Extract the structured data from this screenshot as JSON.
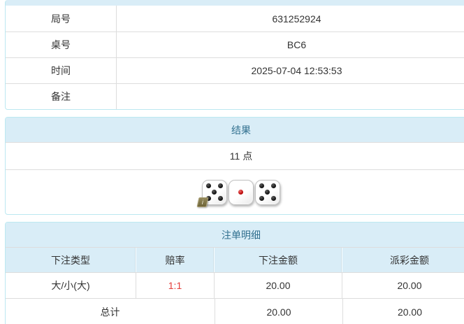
{
  "colors": {
    "header_bg": "#d9edf7",
    "header_text": "#31708f",
    "panel_border": "#bce8f1",
    "row_border": "#dddddd",
    "text": "#333333",
    "odds_red": "#e43d3a"
  },
  "info_table": {
    "rows": [
      {
        "label": "局号",
        "value": "631252924"
      },
      {
        "label": "桌号",
        "value": "BC6"
      },
      {
        "label": "时间",
        "value": "2025-07-04 12:53:53"
      },
      {
        "label": "备注",
        "value": ""
      }
    ]
  },
  "result_panel": {
    "title": "结果",
    "points": "11 点",
    "dice": [
      {
        "value": 5,
        "pip_color": "black",
        "badge": "i"
      },
      {
        "value": 1,
        "pip_color": "red"
      },
      {
        "value": 5,
        "pip_color": "black"
      }
    ]
  },
  "bets_panel": {
    "title": "注单明细",
    "columns": [
      "下注类型",
      "赔率",
      "下注金额",
      "派彩金额"
    ],
    "rows": [
      {
        "type": "大/小(大)",
        "odds": "1:1",
        "bet": "20.00",
        "payout": "20.00"
      }
    ],
    "total": {
      "label": "总计",
      "bet": "20.00",
      "payout": "20.00"
    }
  }
}
